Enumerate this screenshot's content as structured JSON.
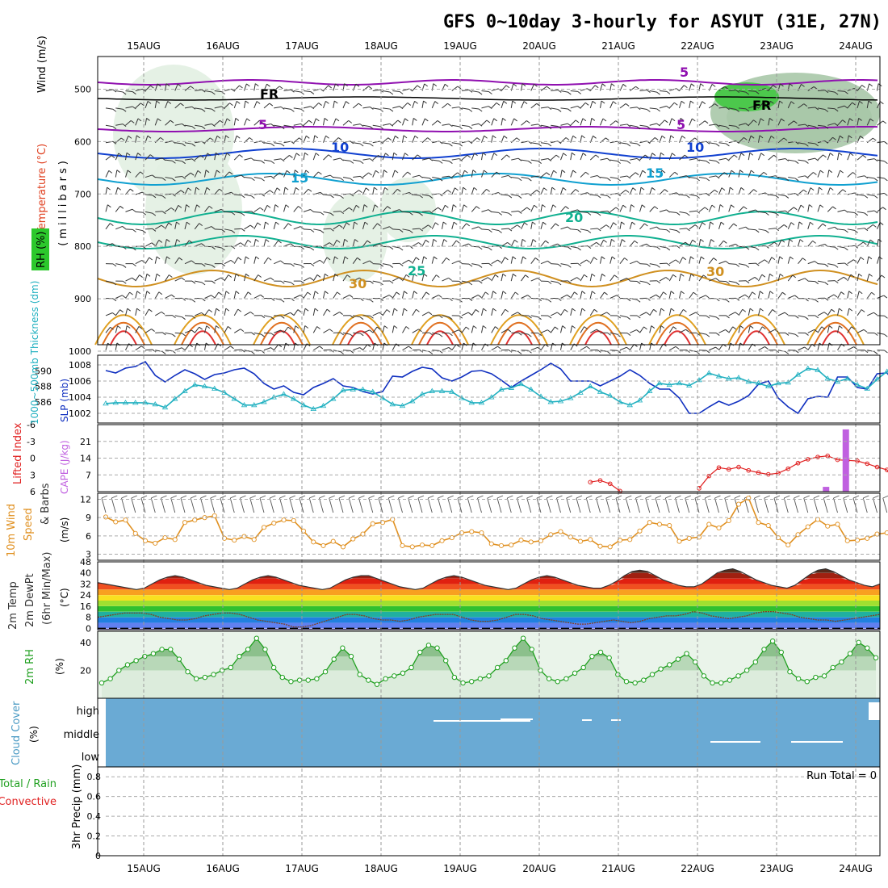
{
  "title": "GFS 0~10day 3-hourly for ASYUT (31E, 27N)",
  "dates": [
    "15AUG",
    "16AUG",
    "17AUG",
    "18AUG",
    "19AUG",
    "20AUG",
    "21AUG",
    "22AUG",
    "23AUG",
    "24AUG"
  ],
  "panels": {
    "upper": {
      "ylabel_units": "(millibars)",
      "ylabel_vars": [
        {
          "text": "Wind (m/s)",
          "color": "#000000"
        },
        {
          "text": "Temperature (°C)",
          "color": "#e04020"
        },
        {
          "text": "RH (%)",
          "color": "#000000"
        }
      ],
      "ylim": [
        1000,
        450
      ],
      "yticks": [
        500,
        600,
        700,
        800,
        900,
        1000
      ],
      "rh_key": "RH (%)",
      "contour_labels": [
        {
          "text": "5",
          "color": "#9010b0"
        },
        {
          "text": "5",
          "color": "#9010b0"
        },
        {
          "text": "5",
          "color": "#9010b0"
        },
        {
          "text": "10",
          "color": "#1040d0"
        },
        {
          "text": "10",
          "color": "#1040d0"
        },
        {
          "text": "15",
          "color": "#10a0d0"
        },
        {
          "text": "15",
          "color": "#10a0d0"
        },
        {
          "text": "20",
          "color": "#10b090"
        },
        {
          "text": "25",
          "color": "#10b090"
        },
        {
          "text": "30",
          "color": "#d09020"
        },
        {
          "text": "30",
          "color": "#d09020"
        },
        {
          "text": "FR",
          "color": "#000000"
        },
        {
          "text": "FR",
          "color": "#000000"
        }
      ]
    },
    "thickness": {
      "ylabel_left": "1000~500mb Thickness (dm)",
      "ylabel_right": "SLP (mb)",
      "left_ticks": [
        590,
        588,
        586
      ],
      "right_ticks": [
        1008,
        1006,
        1004,
        1002
      ],
      "slp_color": "#1030c0",
      "thick_color": "#20b0c0"
    },
    "stability": {
      "ylabel_left": "Lifted Index",
      "ylabel_right": "CAPE (J/kg)",
      "left_ticks": [
        -6,
        -3,
        0,
        3,
        6
      ],
      "right_ticks": [
        21,
        14,
        7
      ],
      "li_color": "#e02020",
      "cape_color": "#c060e0"
    },
    "wind": {
      "ylabel": [
        "10m Wind",
        "Speed",
        "& Barbs"
      ],
      "units": "(m/s)",
      "yticks": [
        3,
        6,
        9,
        12
      ],
      "color": "#e09020"
    },
    "temp": {
      "ylabel": [
        "2m Temp",
        "2m DewPt",
        "(6hr Min/Max)"
      ],
      "units": "(°C)",
      "yticks": [
        0,
        8,
        16,
        24,
        32,
        40,
        48
      ]
    },
    "rh": {
      "ylabel": "2m RH",
      "units": "(%)",
      "yticks": [
        20,
        40
      ],
      "color": "#20a020"
    },
    "cloud": {
      "ylabel": "Cloud Cover",
      "units": "(%)",
      "levels": [
        "high",
        "middle",
        "low"
      ],
      "color": "#6aaad4"
    },
    "precip": {
      "ylabel_left": [
        "Total / Rain",
        "Convective"
      ],
      "ylabel": "3hr Precip (mm)",
      "yticks": [
        0,
        0.2,
        0.4,
        0.6,
        0.8
      ],
      "run_total": "Run Total = 0"
    }
  },
  "chart_data": [
    {
      "type": "line",
      "title": "1000~500mb Thickness / SLP",
      "x_unit": "3-hourly steps from 14AUG 12Z",
      "series": [
        {
          "name": "SLP (mb)",
          "axis": "right",
          "values": [
            1007.3,
            1007.0,
            1007.6,
            1007.8,
            1008.4,
            1006.7,
            1005.9,
            1006.7,
            1007.4,
            1006.9,
            1006.2,
            1006.8,
            1007.0,
            1007.4,
            1007.6,
            1006.9,
            1005.7,
            1005.0,
            1005.4,
            1004.6,
            1004.3,
            1005.2,
            1005.7,
            1006.3,
            1005.4,
            1005.2,
            1004.7,
            1004.4,
            1004.7,
            1006.6,
            1006.5,
            1007.2,
            1007.7,
            1007.5,
            1006.4,
            1006.0,
            1006.5,
            1007.2,
            1007.3,
            1006.9,
            1006.1,
            1005.2,
            1006.0,
            1006.7,
            1007.4,
            1008.2,
            1007.5,
            1006.0,
            1006.0,
            1006.0,
            1005.4,
            1006.0,
            1006.6,
            1007.4,
            1006.7,
            1005.7,
            1005.0,
            1005.0,
            1003.9,
            1002.0,
            1002.0,
            1002.8,
            1003.5,
            1003.0,
            1003.5,
            1004.2,
            1005.6,
            1006.0,
            1003.9,
            1002.8,
            1002.0,
            1003.8,
            1004.1,
            1004.0,
            1006.5,
            1006.5,
            1005.2,
            1005.0,
            1006.9,
            1007.0,
            1005.5,
            1005.5,
            1006.5,
            1007.2,
            1008.4
          ]
        },
        {
          "name": "1000~500mb Thickness (dm)",
          "axis": "left",
          "values": [
            585.8,
            585.9,
            585.9,
            585.9,
            585.9,
            585.7,
            585.3,
            586.4,
            587.4,
            588.2,
            588.0,
            587.7,
            587.2,
            586.4,
            585.6,
            585.6,
            586.0,
            586.6,
            587.0,
            586.4,
            585.6,
            585.1,
            585.5,
            586.4,
            587.5,
            587.6,
            587.6,
            587.3,
            586.5,
            585.7,
            585.5,
            586.1,
            587.0,
            587.4,
            587.4,
            587.3,
            586.5,
            585.9,
            585.9,
            586.6,
            587.6,
            587.8,
            588.3,
            587.6,
            586.7,
            586.0,
            586.1,
            586.5,
            587.2,
            588.0,
            587.3,
            586.8,
            586.0,
            585.6,
            586.2,
            587.4,
            588.4,
            588.2,
            588.4,
            588.1,
            588.8,
            589.7,
            589.3,
            589.0,
            589.1,
            588.6,
            588.4,
            588.0,
            588.4,
            588.5,
            589.5,
            590.3,
            590.1,
            589.0,
            588.6,
            589.0,
            588.2,
            587.7,
            588.9,
            589.9,
            590.0,
            589.3,
            588.4,
            587.6,
            587.3
          ]
        }
      ]
    },
    {
      "type": "line",
      "title": "Lifted Index / CAPE",
      "series": [
        {
          "name": "Lifted Index",
          "axis": "left",
          "values_note": "only plotted where within -6..6",
          "values": [
            null,
            null,
            null,
            null,
            null,
            null,
            null,
            null,
            null,
            null,
            null,
            null,
            null,
            null,
            null,
            null,
            null,
            null,
            null,
            null,
            null,
            null,
            null,
            null,
            null,
            null,
            null,
            null,
            null,
            null,
            null,
            null,
            null,
            null,
            null,
            null,
            null,
            null,
            null,
            null,
            null,
            null,
            null,
            null,
            null,
            null,
            null,
            null,
            null,
            null,
            null,
            null,
            null,
            null,
            null,
            null,
            null,
            null,
            null,
            null,
            null,
            null,
            null,
            null,
            null,
            null,
            4.3,
            4.0,
            4.6,
            5.9,
            null,
            null,
            null,
            null,
            null,
            null,
            null,
            5.4,
            3.2,
            1.7,
            2.0,
            1.6,
            2.2,
            2.6,
            2.9,
            2.7,
            1.9,
            0.9,
            0.2,
            -0.2,
            -0.4,
            0.3,
            0.4,
            0.5,
            1.0,
            1.6,
            2.1,
            5.2,
            3.1,
            1.6,
            2.0
          ]
        },
        {
          "name": "CAPE (J/kg)",
          "axis": "right",
          "kind": "bar",
          "points": [
            {
              "step": 73,
              "value": 2
            },
            {
              "step": 75,
              "value": 26
            }
          ]
        }
      ]
    },
    {
      "type": "line",
      "title": "10m Wind Speed",
      "series": [
        {
          "name": "10m Wind Speed (m/s)",
          "values": [
            9.1,
            8.3,
            8.6,
            6.4,
            5.2,
            4.8,
            5.7,
            5.4,
            8.2,
            8.6,
            9.0,
            9.3,
            5.6,
            5.3,
            5.9,
            5.4,
            7.4,
            8.1,
            8.6,
            8.5,
            6.8,
            5.0,
            4.4,
            5.1,
            4.2,
            5.5,
            6.3,
            8.0,
            8.2,
            8.7,
            4.4,
            4.2,
            4.5,
            4.4,
            5.2,
            5.7,
            6.5,
            6.7,
            6.5,
            4.7,
            4.4,
            4.5,
            5.3,
            5.0,
            5.2,
            6.2,
            6.7,
            5.8,
            5.1,
            5.4,
            4.3,
            4.2,
            5.3,
            5.4,
            6.8,
            8.2,
            7.9,
            7.7,
            5.1,
            5.6,
            5.8,
            7.9,
            7.3,
            8.5,
            11.2,
            12.2,
            8.2,
            7.7,
            5.7,
            4.5,
            6.2,
            7.5,
            8.7,
            7.6,
            7.9,
            5.2,
            5.3,
            5.6,
            6.3,
            6.5,
            7.4,
            7.0,
            6.3,
            7.4,
            8.3
          ]
        }
      ]
    },
    {
      "type": "area",
      "title": "2m Temp / 2m DewPt",
      "series": [
        {
          "name": "2m Temp (°C)",
          "values": [
            33,
            32,
            31,
            30,
            29,
            28,
            29,
            32,
            35,
            37,
            38,
            37,
            35,
            33,
            31,
            30,
            29,
            28,
            29,
            32,
            35,
            37,
            38,
            37,
            35,
            33,
            31,
            30,
            29,
            28,
            29,
            32,
            35,
            37,
            38,
            38,
            36,
            34,
            32,
            30,
            29,
            28,
            29,
            32,
            35,
            37,
            38,
            37,
            35,
            33,
            31,
            30,
            29,
            28,
            29,
            32,
            35,
            37,
            38,
            37,
            35,
            33,
            31,
            30,
            29,
            29,
            31,
            34,
            38,
            41,
            42,
            41,
            38,
            35,
            33,
            31,
            30,
            30,
            32,
            36,
            40,
            42,
            43,
            41,
            38,
            35,
            33,
            31,
            30,
            29,
            31,
            35,
            39,
            42,
            43,
            41,
            38,
            35,
            33,
            31,
            30,
            32
          ]
        },
        {
          "name": "2m DewPt (°C)",
          "values": [
            8,
            9,
            10,
            11,
            11,
            11,
            10,
            8,
            7,
            6,
            6,
            7,
            9,
            10,
            11,
            11,
            10,
            8,
            6,
            5,
            4,
            3,
            1,
            1,
            2,
            4,
            6,
            8,
            10,
            10,
            9,
            7,
            6,
            6,
            5,
            6,
            8,
            9,
            10,
            10,
            10,
            8,
            6,
            5,
            5,
            6,
            8,
            10,
            10,
            9,
            7,
            6,
            5,
            4,
            3,
            3,
            4,
            5,
            6,
            5,
            4,
            5,
            7,
            8,
            9,
            9,
            10,
            12,
            11,
            9,
            8,
            7,
            8,
            9,
            11,
            12,
            12,
            11,
            10,
            8,
            7,
            6,
            6,
            5,
            6,
            7,
            8,
            9,
            10
          ]
        }
      ]
    },
    {
      "type": "area",
      "title": "2m RH",
      "series": [
        {
          "name": "2m RH (%)",
          "values": [
            11,
            14,
            20,
            24,
            27,
            30,
            32,
            35,
            35,
            28,
            19,
            14,
            15,
            17,
            20,
            22,
            30,
            35,
            43,
            35,
            22,
            15,
            12,
            13,
            13,
            14,
            19,
            28,
            36,
            30,
            17,
            13,
            10,
            14,
            16,
            18,
            22,
            33,
            38,
            36,
            27,
            15,
            11,
            12,
            14,
            16,
            22,
            27,
            36,
            43,
            35,
            20,
            14,
            12,
            14,
            18,
            22,
            30,
            33,
            29,
            17,
            12,
            11,
            13,
            17,
            21,
            24,
            28,
            32,
            26,
            16,
            11,
            11,
            13,
            16,
            20,
            26,
            35,
            41,
            33,
            19,
            14,
            12,
            15,
            16,
            22,
            26,
            32,
            40,
            36,
            29
          ]
        }
      ]
    },
    {
      "type": "heatmap",
      "title": "Cloud Cover",
      "levels": [
        "high",
        "middle",
        "low"
      ],
      "values_note": "cloud cover fraction per level; near-full coverage throughout"
    },
    {
      "type": "bar",
      "title": "3hr Precip (mm)",
      "values_note": "all zero",
      "values": [],
      "ylim": [
        0,
        0.9
      ]
    }
  ]
}
